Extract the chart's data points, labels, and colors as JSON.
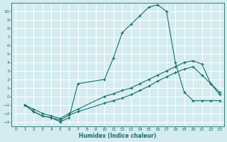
{
  "xlabel": "Humidex (Indice chaleur)",
  "bg_color": "#d4ecf0",
  "grid_color": "#ffffff",
  "line_color": "#1a6b6b",
  "xlim": [
    -0.5,
    23.5
  ],
  "ylim": [
    -3.5,
    11.0
  ],
  "xticks": [
    0,
    1,
    2,
    3,
    4,
    5,
    6,
    7,
    8,
    9,
    10,
    11,
    12,
    13,
    14,
    15,
    16,
    17,
    18,
    19,
    20,
    21,
    22,
    23
  ],
  "yticks": [
    -3,
    -2,
    -1,
    0,
    1,
    2,
    3,
    4,
    5,
    6,
    7,
    8,
    9,
    10
  ],
  "series1_x": [
    1,
    2,
    3,
    4,
    5,
    6,
    7,
    10,
    11,
    12,
    13,
    14,
    15,
    16,
    17,
    18,
    19,
    20,
    21,
    22,
    23
  ],
  "series1_y": [
    -1.0,
    -1.8,
    -2.3,
    -2.5,
    -3.0,
    -2.5,
    1.5,
    2.0,
    4.5,
    7.5,
    8.5,
    9.5,
    10.5,
    10.8,
    10.0,
    4.0,
    0.5,
    -0.5,
    -0.5,
    -0.5,
    -0.5
  ],
  "series2_x": [
    1,
    2,
    3,
    4,
    5,
    6,
    7,
    10,
    11,
    12,
    13,
    14,
    15,
    16,
    17,
    18,
    19,
    20,
    21,
    22,
    23
  ],
  "series2_y": [
    -1.0,
    -1.8,
    -2.3,
    -2.5,
    -2.8,
    -2.2,
    -1.8,
    -0.8,
    -0.5,
    -0.2,
    0.2,
    0.7,
    1.2,
    1.8,
    2.3,
    2.8,
    3.2,
    3.5,
    2.5,
    1.5,
    0.5
  ],
  "series3_x": [
    1,
    2,
    3,
    4,
    5,
    6,
    7,
    10,
    11,
    12,
    13,
    14,
    15,
    16,
    17,
    18,
    19,
    20,
    21,
    22,
    23
  ],
  "series3_y": [
    -1.0,
    -1.5,
    -2.0,
    -2.3,
    -2.6,
    -2.0,
    -1.5,
    0.0,
    0.3,
    0.7,
    1.0,
    1.5,
    2.0,
    2.5,
    3.0,
    3.5,
    4.0,
    4.2,
    3.8,
    1.5,
    0.2
  ]
}
